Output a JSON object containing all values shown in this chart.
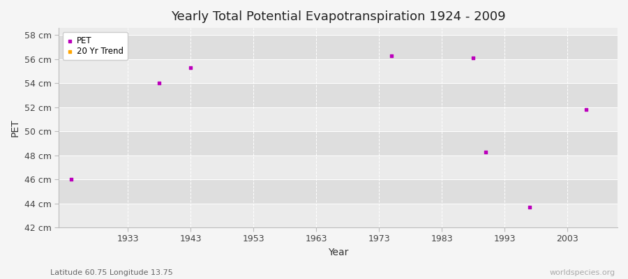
{
  "title": "Yearly Total Potential Evapotranspiration 1924 - 2009",
  "xlabel": "Year",
  "ylabel": "PET",
  "subtitle": "Latitude 60.75 Longitude 13.75",
  "watermark": "worldspecies.org",
  "xlim": [
    1922,
    2011
  ],
  "ylim": [
    42,
    58.6
  ],
  "yticks": [
    42,
    44,
    46,
    48,
    50,
    52,
    54,
    56,
    58
  ],
  "ytick_labels": [
    "42 cm",
    "44 cm",
    "46 cm",
    "48 cm",
    "50 cm",
    "52 cm",
    "54 cm",
    "56 cm",
    "58 cm"
  ],
  "xticks": [
    1933,
    1943,
    1953,
    1963,
    1973,
    1983,
    1993,
    2003
  ],
  "pet_years": [
    1924,
    1938,
    1943,
    1975,
    1988,
    1990,
    1997,
    2006
  ],
  "pet_values": [
    46.0,
    54.0,
    55.3,
    56.3,
    56.1,
    48.3,
    43.7,
    51.8
  ],
  "pet_color": "#BB00BB",
  "trend_color": "#FFA500",
  "bg_color": "#f5f5f5",
  "plot_bg_color": "#ebebeb",
  "alt_band_color": "#dedede",
  "grid_color": "#ffffff",
  "legend_items": [
    "PET",
    "20 Yr Trend"
  ]
}
